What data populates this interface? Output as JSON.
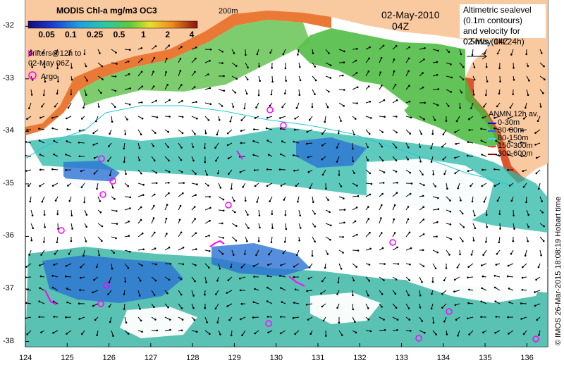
{
  "map": {
    "title": "MODIS Chl-a mg/m3 OC3",
    "colorbar_ticks": [
      "0.05",
      "0.1",
      "0.25",
      "0.5",
      "1",
      "2",
      "4"
    ],
    "date": "02-May-2010",
    "time": "04Z",
    "contour_label": "200m",
    "lon_ticks": [
      "124",
      "125",
      "126",
      "127",
      "128",
      "129",
      "130",
      "131",
      "132",
      "133",
      "134",
      "135",
      "136"
    ],
    "lat_ticks": [
      "-32",
      "-33",
      "-34",
      "-35",
      "-36",
      "-37",
      "-38"
    ],
    "lon_range": [
      124,
      136.5
    ],
    "lat_range": [
      -38.1,
      -31.5
    ],
    "colors": {
      "land": "#f9c9a0",
      "coast_high": "#d9401a",
      "clouds": "#ffffff",
      "chl_low": "#2a72d4",
      "chl_mid": "#28b8a8",
      "chl_high": "#47b83b",
      "drifter": "#ff00ff",
      "contour_cyan": "#23c8d8"
    }
  },
  "legend": {
    "altimetry_title": "Altimetric sealevel\n(0.1m contours)\nand velocity for\n02-May 04Z",
    "velocity_scale": "0.5m/s (1kt 24h)",
    "drifter_label": "drifters@12h to\n02-May 06Z",
    "argo_label": "Argo",
    "anmn_title": "ANMN 12h av.",
    "anmn_items": [
      {
        "label": "0-30m",
        "color": "#0000ff"
      },
      {
        "label": "30-80m",
        "color": "#1a6aff"
      },
      {
        "label": "80-150m",
        "color": "#3fd6ff"
      },
      {
        "label": "150-300m",
        "color": "#ff4040"
      },
      {
        "label": "300-600m",
        "color": "#8a0000"
      }
    ]
  },
  "credit": "© IMOS 26-Mar-2015 18:08:19 Hobart time"
}
